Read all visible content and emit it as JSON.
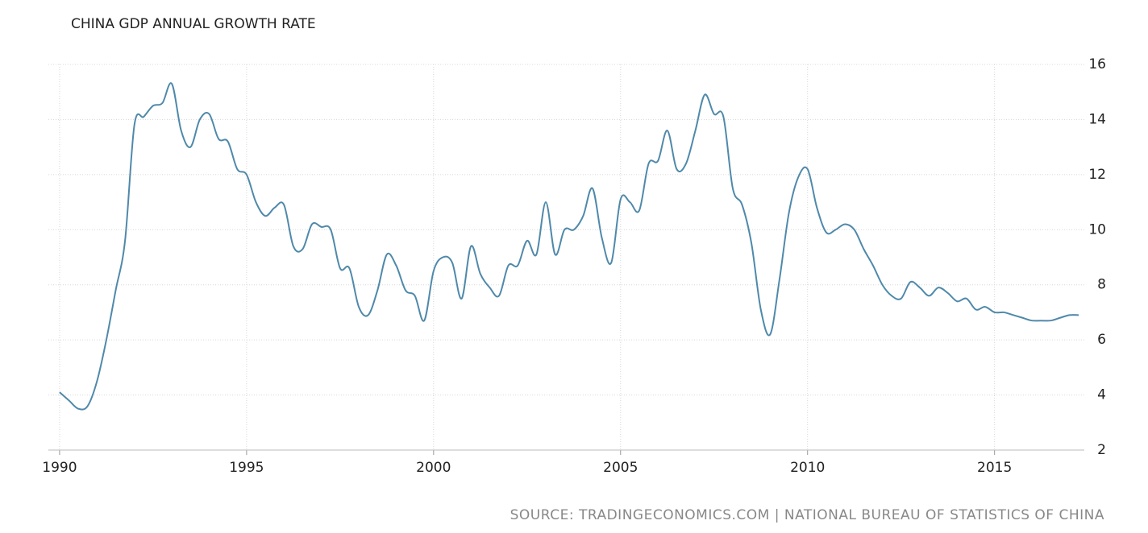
{
  "chart_data": {
    "type": "line",
    "title": "CHINA GDP ANNUAL GROWTH RATE",
    "source": "SOURCE: TRADINGECONOMICS.COM | NATIONAL BUREAU OF STATISTICS OF CHINA",
    "x": [
      1990.0,
      1990.25,
      1990.5,
      1990.75,
      1991.0,
      1991.25,
      1991.5,
      1991.75,
      1992.0,
      1992.25,
      1992.5,
      1992.75,
      1993.0,
      1993.25,
      1993.5,
      1993.75,
      1994.0,
      1994.25,
      1994.5,
      1994.75,
      1995.0,
      1995.25,
      1995.5,
      1995.75,
      1996.0,
      1996.25,
      1996.5,
      1996.75,
      1997.0,
      1997.25,
      1997.5,
      1997.75,
      1998.0,
      1998.25,
      1998.5,
      1998.75,
      1999.0,
      1999.25,
      1999.5,
      1999.75,
      2000.0,
      2000.25,
      2000.5,
      2000.75,
      2001.0,
      2001.25,
      2001.5,
      2001.75,
      2002.0,
      2002.25,
      2002.5,
      2002.75,
      2003.0,
      2003.25,
      2003.5,
      2003.75,
      2004.0,
      2004.25,
      2004.5,
      2004.75,
      2005.0,
      2005.25,
      2005.5,
      2005.75,
      2006.0,
      2006.25,
      2006.5,
      2006.75,
      2007.0,
      2007.25,
      2007.5,
      2007.75,
      2008.0,
      2008.25,
      2008.5,
      2008.75,
      2009.0,
      2009.25,
      2009.5,
      2009.75,
      2010.0,
      2010.25,
      2010.5,
      2010.75,
      2011.0,
      2011.25,
      2011.5,
      2011.75,
      2012.0,
      2012.25,
      2012.5,
      2012.75,
      2013.0,
      2013.25,
      2013.5,
      2013.75,
      2014.0,
      2014.25,
      2014.5,
      2014.75,
      2015.0,
      2015.25,
      2015.5,
      2015.75,
      2016.0,
      2016.25,
      2016.5,
      2016.75,
      2017.0,
      2017.25
    ],
    "series": [
      {
        "name": "GDP Annual Growth Rate",
        "color": "#4f89aa",
        "values": [
          4.1,
          3.8,
          3.5,
          3.6,
          4.5,
          6.0,
          7.8,
          9.6,
          13.8,
          14.1,
          14.5,
          14.6,
          15.3,
          13.6,
          13.0,
          14.0,
          14.2,
          13.3,
          13.2,
          12.2,
          12.0,
          11.0,
          10.5,
          10.8,
          10.9,
          9.4,
          9.3,
          10.2,
          10.1,
          10.0,
          8.6,
          8.6,
          7.2,
          6.9,
          7.8,
          9.1,
          8.7,
          7.8,
          7.6,
          6.7,
          8.5,
          9.0,
          8.8,
          7.5,
          9.4,
          8.4,
          7.9,
          7.6,
          8.7,
          8.7,
          9.6,
          9.1,
          11.0,
          9.1,
          10.0,
          10.0,
          10.5,
          11.5,
          9.7,
          8.8,
          11.1,
          11.0,
          10.7,
          12.4,
          12.5,
          13.6,
          12.2,
          12.4,
          13.6,
          14.9,
          14.2,
          14.1,
          11.5,
          10.9,
          9.5,
          7.1,
          6.2,
          8.2,
          10.6,
          11.9,
          12.2,
          10.8,
          9.9,
          10.0,
          10.2,
          10.0,
          9.3,
          8.7,
          8.0,
          7.6,
          7.5,
          8.1,
          7.9,
          7.6,
          7.9,
          7.7,
          7.4,
          7.5,
          7.1,
          7.2,
          7.0,
          7.0,
          6.9,
          6.8,
          6.7,
          6.7,
          6.7,
          6.8,
          6.9,
          6.9
        ]
      }
    ],
    "xlim": [
      1989.7,
      2017.4
    ],
    "xticks": [
      1990,
      1995,
      2000,
      2005,
      2010,
      2015
    ],
    "ylim": [
      2,
      16
    ],
    "yticks": [
      2,
      4,
      6,
      8,
      10,
      12,
      14,
      16
    ],
    "grid": true
  }
}
